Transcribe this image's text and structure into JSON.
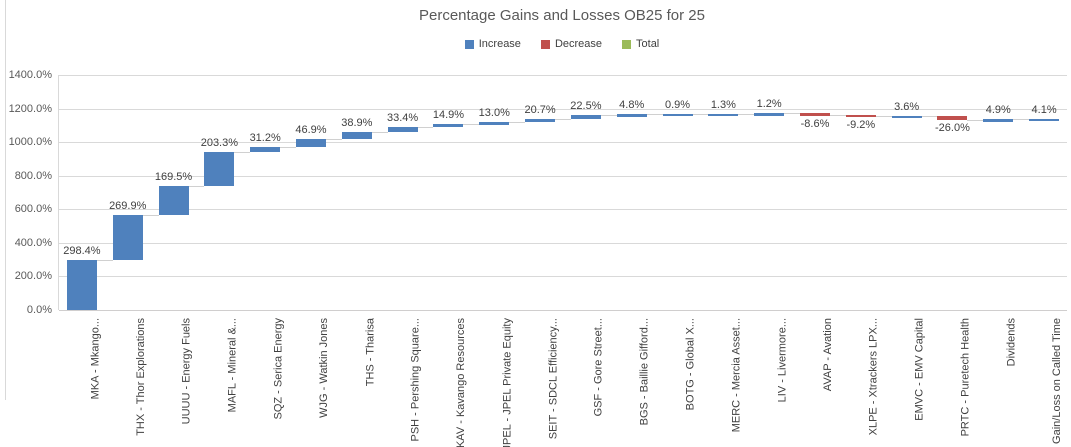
{
  "chart_data": {
    "type": "bar",
    "subtype": "waterfall",
    "title": "Percentage Gains and Losses OB25 for 25",
    "categories": [
      "MKA - Mkango...",
      "THX - Thor Explorations",
      "UUUU - Energy Fuels",
      "MAFL - Mineral &...",
      "SQZ - Serica Energy",
      "WJG - Watkin Jones",
      "THS - Tharisa",
      "PSH - Pershing Square...",
      "KAV - Kavango Resources",
      "JPEL - JPEL Private Equity",
      "SEIT - SDCL Efficiency...",
      "GSF - Gore Street...",
      "BGS - Baillie Gifford...",
      "BOTG - Global X...",
      "MERC - Mercia Asset...",
      "LIV - Livermore...",
      "AVAP - Avation",
      "XLPE - Xtrackers LPX...",
      "EMVC - EMV Capital",
      "PRTC - Puretech Health",
      "Dividends",
      "Gain/Loss on Called Time"
    ],
    "values": [
      298.4,
      269.9,
      169.5,
      203.3,
      31.2,
      46.9,
      38.9,
      33.4,
      14.9,
      13.0,
      20.7,
      22.5,
      4.8,
      0.9,
      1.3,
      1.2,
      -8.6,
      -9.2,
      3.6,
      -26.0,
      4.9,
      4.1
    ],
    "point_types": [
      "increase",
      "increase",
      "increase",
      "increase",
      "increase",
      "increase",
      "increase",
      "increase",
      "increase",
      "increase",
      "increase",
      "increase",
      "increase",
      "increase",
      "increase",
      "increase",
      "decrease",
      "decrease",
      "increase",
      "decrease",
      "increase",
      "increase"
    ],
    "data_labels": [
      "298.4%",
      "269.9%",
      "169.5%",
      "203.3%",
      "31.2%",
      "46.9%",
      "38.9%",
      "33.4%",
      "14.9%",
      "13.0%",
      "20.7%",
      "22.5%",
      "4.8%",
      "0.9%",
      "1.3%",
      "1.2%",
      "-8.6%",
      "-9.2%",
      "3.6%",
      "-26.0%",
      "4.9%",
      "4.1%"
    ],
    "ylim": [
      0,
      1400
    ],
    "ytick_step": 200,
    "ytick_labels": [
      "0.0%",
      "200.0%",
      "400.0%",
      "600.0%",
      "800.0%",
      "1000.0%",
      "1200.0%",
      "1400.0%"
    ],
    "grid": true,
    "legend_position": "top"
  },
  "legend": [
    {
      "key": "increase",
      "label": "Increase",
      "color": "#4F81BD"
    },
    {
      "key": "decrease",
      "label": "Decrease",
      "color": "#C0504D"
    },
    {
      "key": "total",
      "label": "Total",
      "color": "#9BBB59"
    }
  ],
  "colors": {
    "increase": "#4F81BD",
    "decrease": "#C0504D",
    "total": "#9BBB59",
    "gridline": "#D9D9D9",
    "connector": "#D0D0D0",
    "axis_text": "#595959",
    "label_text": "#404040",
    "title_text": "#595959"
  }
}
